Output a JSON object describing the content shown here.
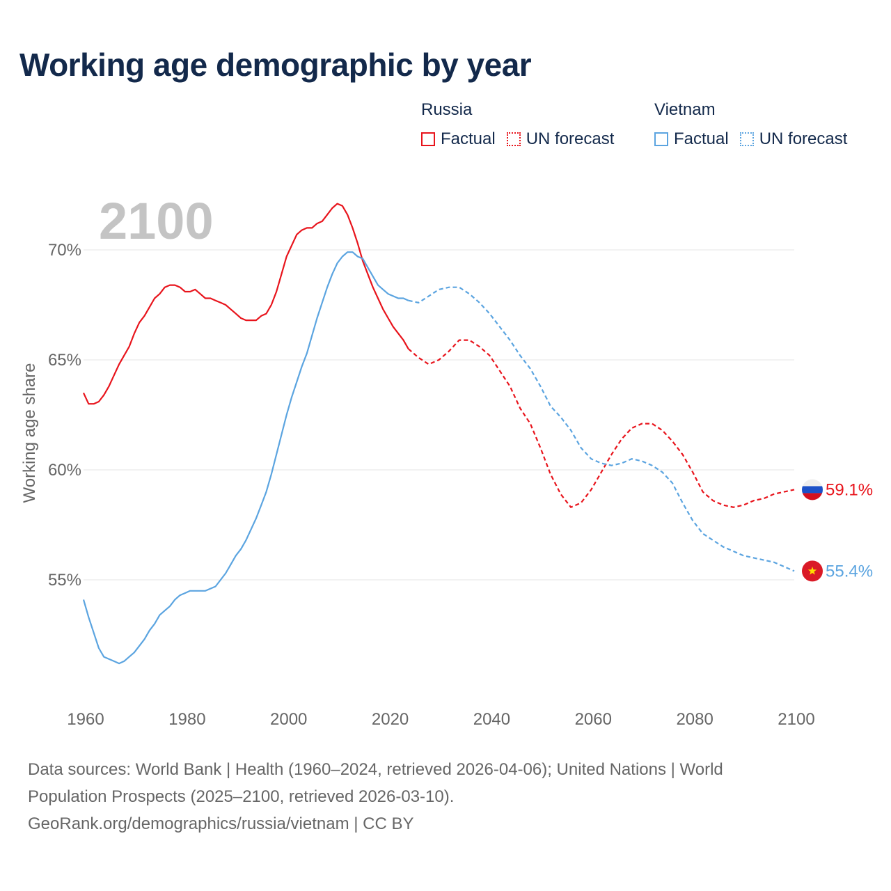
{
  "title": "Working age demographic by year",
  "legend": {
    "russia": {
      "name": "Russia",
      "factual": "Factual",
      "forecast": "UN forecast"
    },
    "vietnam": {
      "name": "Vietnam",
      "factual": "Factual",
      "forecast": "UN forecast"
    }
  },
  "colors": {
    "russia": "#e8141c",
    "vietnam": "#5ba4e0",
    "grid": "#e6e6e6",
    "axis_text": "#666666",
    "year_label": "#c4c4c4"
  },
  "year_label": "2100",
  "end_labels": {
    "russia": "59.1%",
    "vietnam": "55.4%"
  },
  "footer": {
    "line1": "Data sources: World Bank | Health (1960–2024, retrieved 2026-04-06); United Nations | World",
    "line2": "Population Prospects (2025–2100, retrieved 2026-03-10).",
    "line3": "GeoRank.org/demographics/russia/vietnam | CC BY"
  },
  "chart_data": {
    "type": "line",
    "title": "Working age demographic by year",
    "xlabel": "",
    "ylabel": "Working age share",
    "xlim": [
      1960,
      2100
    ],
    "ylim": [
      50.5,
      72.5
    ],
    "x_ticks": [
      1960,
      1980,
      2000,
      2020,
      2040,
      2060,
      2080,
      2100
    ],
    "y_ticks": [
      55,
      60,
      65,
      70
    ],
    "y_tick_labels": [
      "55%",
      "60%",
      "65%",
      "70%"
    ],
    "factual_end_year": 2024,
    "series": [
      {
        "name": "Russia",
        "color": "#e8141c",
        "points": [
          [
            1960,
            63.5
          ],
          [
            1961,
            63.0
          ],
          [
            1962,
            63.0
          ],
          [
            1963,
            63.1
          ],
          [
            1964,
            63.4
          ],
          [
            1965,
            63.8
          ],
          [
            1966,
            64.3
          ],
          [
            1967,
            64.8
          ],
          [
            1968,
            65.2
          ],
          [
            1969,
            65.6
          ],
          [
            1970,
            66.2
          ],
          [
            1971,
            66.7
          ],
          [
            1972,
            67.0
          ],
          [
            1973,
            67.4
          ],
          [
            1974,
            67.8
          ],
          [
            1975,
            68.0
          ],
          [
            1976,
            68.3
          ],
          [
            1977,
            68.4
          ],
          [
            1978,
            68.4
          ],
          [
            1979,
            68.3
          ],
          [
            1980,
            68.1
          ],
          [
            1981,
            68.1
          ],
          [
            1982,
            68.2
          ],
          [
            1983,
            68.0
          ],
          [
            1984,
            67.8
          ],
          [
            1985,
            67.8
          ],
          [
            1986,
            67.7
          ],
          [
            1987,
            67.6
          ],
          [
            1988,
            67.5
          ],
          [
            1989,
            67.3
          ],
          [
            1990,
            67.1
          ],
          [
            1991,
            66.9
          ],
          [
            1992,
            66.8
          ],
          [
            1993,
            66.8
          ],
          [
            1994,
            66.8
          ],
          [
            1995,
            67.0
          ],
          [
            1996,
            67.1
          ],
          [
            1997,
            67.5
          ],
          [
            1998,
            68.1
          ],
          [
            1999,
            68.9
          ],
          [
            2000,
            69.7
          ],
          [
            2001,
            70.2
          ],
          [
            2002,
            70.7
          ],
          [
            2003,
            70.9
          ],
          [
            2004,
            71.0
          ],
          [
            2005,
            71.0
          ],
          [
            2006,
            71.2
          ],
          [
            2007,
            71.3
          ],
          [
            2008,
            71.6
          ],
          [
            2009,
            71.9
          ],
          [
            2010,
            72.1
          ],
          [
            2011,
            72.0
          ],
          [
            2012,
            71.6
          ],
          [
            2013,
            71.0
          ],
          [
            2014,
            70.3
          ],
          [
            2015,
            69.5
          ],
          [
            2016,
            68.9
          ],
          [
            2017,
            68.3
          ],
          [
            2018,
            67.8
          ],
          [
            2019,
            67.3
          ],
          [
            2020,
            66.9
          ],
          [
            2021,
            66.5
          ],
          [
            2022,
            66.2
          ],
          [
            2023,
            65.9
          ],
          [
            2024,
            65.5
          ],
          [
            2026,
            65.1
          ],
          [
            2028,
            64.8
          ],
          [
            2030,
            65.0
          ],
          [
            2032,
            65.4
          ],
          [
            2034,
            65.9
          ],
          [
            2036,
            65.9
          ],
          [
            2038,
            65.6
          ],
          [
            2040,
            65.2
          ],
          [
            2042,
            64.5
          ],
          [
            2044,
            63.8
          ],
          [
            2046,
            62.8
          ],
          [
            2048,
            62.1
          ],
          [
            2050,
            61.0
          ],
          [
            2052,
            59.8
          ],
          [
            2054,
            58.9
          ],
          [
            2056,
            58.3
          ],
          [
            2058,
            58.5
          ],
          [
            2060,
            59.1
          ],
          [
            2062,
            59.9
          ],
          [
            2064,
            60.7
          ],
          [
            2066,
            61.4
          ],
          [
            2068,
            61.9
          ],
          [
            2070,
            62.1
          ],
          [
            2072,
            62.1
          ],
          [
            2074,
            61.8
          ],
          [
            2076,
            61.3
          ],
          [
            2078,
            60.7
          ],
          [
            2080,
            59.9
          ],
          [
            2082,
            59.0
          ],
          [
            2084,
            58.6
          ],
          [
            2086,
            58.4
          ],
          [
            2088,
            58.3
          ],
          [
            2090,
            58.4
          ],
          [
            2092,
            58.6
          ],
          [
            2094,
            58.7
          ],
          [
            2096,
            58.9
          ],
          [
            2098,
            59.0
          ],
          [
            2100,
            59.1
          ]
        ]
      },
      {
        "name": "Vietnam",
        "color": "#5ba4e0",
        "points": [
          [
            1960,
            54.1
          ],
          [
            1961,
            53.3
          ],
          [
            1962,
            52.6
          ],
          [
            1963,
            51.9
          ],
          [
            1964,
            51.5
          ],
          [
            1965,
            51.4
          ],
          [
            1966,
            51.3
          ],
          [
            1967,
            51.2
          ],
          [
            1968,
            51.3
          ],
          [
            1969,
            51.5
          ],
          [
            1970,
            51.7
          ],
          [
            1971,
            52.0
          ],
          [
            1972,
            52.3
          ],
          [
            1973,
            52.7
          ],
          [
            1974,
            53.0
          ],
          [
            1975,
            53.4
          ],
          [
            1976,
            53.6
          ],
          [
            1977,
            53.8
          ],
          [
            1978,
            54.1
          ],
          [
            1979,
            54.3
          ],
          [
            1980,
            54.4
          ],
          [
            1981,
            54.5
          ],
          [
            1982,
            54.5
          ],
          [
            1983,
            54.5
          ],
          [
            1984,
            54.5
          ],
          [
            1985,
            54.6
          ],
          [
            1986,
            54.7
          ],
          [
            1987,
            55.0
          ],
          [
            1988,
            55.3
          ],
          [
            1989,
            55.7
          ],
          [
            1990,
            56.1
          ],
          [
            1991,
            56.4
          ],
          [
            1992,
            56.8
          ],
          [
            1993,
            57.3
          ],
          [
            1994,
            57.8
          ],
          [
            1995,
            58.4
          ],
          [
            1996,
            59.0
          ],
          [
            1997,
            59.8
          ],
          [
            1998,
            60.7
          ],
          [
            1999,
            61.6
          ],
          [
            2000,
            62.5
          ],
          [
            2001,
            63.3
          ],
          [
            2002,
            64.0
          ],
          [
            2003,
            64.7
          ],
          [
            2004,
            65.3
          ],
          [
            2005,
            66.1
          ],
          [
            2006,
            66.9
          ],
          [
            2007,
            67.6
          ],
          [
            2008,
            68.3
          ],
          [
            2009,
            68.9
          ],
          [
            2010,
            69.4
          ],
          [
            2011,
            69.7
          ],
          [
            2012,
            69.9
          ],
          [
            2013,
            69.9
          ],
          [
            2014,
            69.7
          ],
          [
            2015,
            69.6
          ],
          [
            2016,
            69.2
          ],
          [
            2017,
            68.8
          ],
          [
            2018,
            68.4
          ],
          [
            2019,
            68.2
          ],
          [
            2020,
            68.0
          ],
          [
            2021,
            67.9
          ],
          [
            2022,
            67.8
          ],
          [
            2023,
            67.8
          ],
          [
            2024,
            67.7
          ],
          [
            2026,
            67.6
          ],
          [
            2028,
            67.9
          ],
          [
            2030,
            68.2
          ],
          [
            2032,
            68.3
          ],
          [
            2034,
            68.3
          ],
          [
            2036,
            68.0
          ],
          [
            2038,
            67.6
          ],
          [
            2040,
            67.1
          ],
          [
            2042,
            66.5
          ],
          [
            2044,
            65.9
          ],
          [
            2046,
            65.2
          ],
          [
            2048,
            64.6
          ],
          [
            2050,
            63.8
          ],
          [
            2052,
            62.9
          ],
          [
            2054,
            62.4
          ],
          [
            2056,
            61.8
          ],
          [
            2058,
            61.0
          ],
          [
            2060,
            60.5
          ],
          [
            2062,
            60.3
          ],
          [
            2064,
            60.2
          ],
          [
            2066,
            60.3
          ],
          [
            2068,
            60.5
          ],
          [
            2070,
            60.4
          ],
          [
            2072,
            60.2
          ],
          [
            2074,
            59.9
          ],
          [
            2076,
            59.4
          ],
          [
            2078,
            58.5
          ],
          [
            2080,
            57.7
          ],
          [
            2082,
            57.1
          ],
          [
            2084,
            56.8
          ],
          [
            2086,
            56.5
          ],
          [
            2088,
            56.3
          ],
          [
            2090,
            56.1
          ],
          [
            2092,
            56.0
          ],
          [
            2094,
            55.9
          ],
          [
            2096,
            55.8
          ],
          [
            2098,
            55.6
          ],
          [
            2100,
            55.4
          ]
        ]
      }
    ]
  }
}
